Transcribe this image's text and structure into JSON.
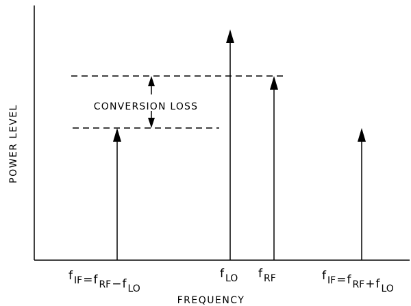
{
  "diagram": {
    "x_axis_label": "FREQUENCY",
    "y_axis_label": "POWER LEVEL",
    "annotation": "CONVERSION LOSS",
    "spectral_lines": [
      {
        "id": "if-lower",
        "symbol": "f",
        "subscript": "IF",
        "equation": [
          {
            "t": "f",
            "s": "IF"
          },
          {
            "t": "="
          },
          {
            "t": "f",
            "s": "RF"
          },
          {
            "t": "−"
          },
          {
            "t": "f",
            "s": "LO"
          }
        ]
      },
      {
        "id": "lo",
        "symbol": "f",
        "subscript": "LO"
      },
      {
        "id": "rf",
        "symbol": "f",
        "subscript": "RF"
      },
      {
        "id": "if-upper",
        "equation": [
          {
            "t": "f",
            "s": "IF"
          },
          {
            "t": "="
          },
          {
            "t": "f",
            "s": "RF"
          },
          {
            "t": "+"
          },
          {
            "t": "f",
            "s": "LO"
          }
        ]
      }
    ],
    "color": "#000000"
  }
}
